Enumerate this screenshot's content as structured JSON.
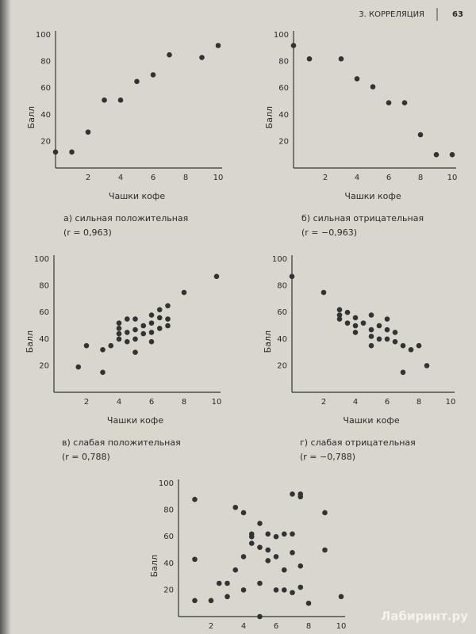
{
  "header": {
    "section": "3. КОРРЕЛЯЦИЯ",
    "page": "63"
  },
  "watermark": "Лабиринт.ру",
  "chart_data": [
    {
      "type": "scatter",
      "x_label": "Чашки кофе",
      "y_label": "Балл",
      "caption": "а) сильная положительная",
      "r_label": "(r = 0,963)",
      "color": "#333333",
      "xlim": [
        0,
        10
      ],
      "ylim": [
        0,
        100
      ],
      "xticks": [
        2,
        4,
        6,
        8,
        10
      ],
      "yticks": [
        20,
        40,
        60,
        80,
        100
      ],
      "x": [
        0,
        1,
        2,
        3,
        4,
        5,
        6,
        7,
        9,
        10
      ],
      "values": [
        12,
        12,
        27,
        51,
        51,
        65,
        70,
        85,
        83,
        92
      ]
    },
    {
      "type": "scatter",
      "x_label": "Чашки кофе",
      "y_label": "Балл",
      "caption": "б) сильная отрицательная",
      "r_label": "(r = −0,963)",
      "color": "#333333",
      "xlim": [
        0,
        10
      ],
      "ylim": [
        0,
        100
      ],
      "xticks": [
        2,
        4,
        6,
        8,
        10
      ],
      "yticks": [
        20,
        40,
        60,
        80,
        100
      ],
      "x": [
        0,
        1,
        3,
        4,
        5,
        6,
        7,
        8,
        9,
        10
      ],
      "values": [
        92,
        82,
        82,
        67,
        61,
        49,
        49,
        25,
        10,
        10
      ]
    },
    {
      "type": "scatter",
      "x_label": "Чашки кофе",
      "y_label": "Балл",
      "caption": "в) слабая положительная",
      "r_label": "(r = 0,788)",
      "color": "#333333",
      "xlim": [
        0,
        10
      ],
      "ylim": [
        0,
        100
      ],
      "xticks": [
        2,
        4,
        6,
        8,
        10
      ],
      "yticks": [
        20,
        40,
        60,
        80,
        100
      ],
      "x": [
        1.5,
        2,
        3,
        3,
        3.5,
        4,
        4,
        4,
        4,
        4.5,
        4.5,
        4.5,
        5,
        5,
        5,
        5,
        5.5,
        5.5,
        6,
        6,
        6,
        6,
        6.5,
        6.5,
        6.5,
        7,
        7,
        7,
        8,
        10
      ],
      "values": [
        19,
        35,
        32,
        15,
        35,
        40,
        44,
        48,
        52,
        38,
        45,
        55,
        30,
        40,
        47,
        55,
        50,
        44,
        38,
        45,
        52,
        58,
        48,
        56,
        62,
        50,
        55,
        65,
        75,
        87
      ]
    },
    {
      "type": "scatter",
      "x_label": "Чашки кофе",
      "y_label": "Балл",
      "caption": "г) слабая отрицательная",
      "r_label": "(r = −0,788)",
      "color": "#333333",
      "xlim": [
        0,
        10
      ],
      "ylim": [
        0,
        100
      ],
      "xticks": [
        2,
        4,
        6,
        8,
        10
      ],
      "yticks": [
        20,
        40,
        60,
        80,
        100
      ],
      "x": [
        0,
        2,
        3,
        3,
        3,
        3.5,
        3.5,
        4,
        4,
        4,
        4.5,
        5,
        5,
        5,
        5,
        5.5,
        5.5,
        6,
        6,
        6,
        6.5,
        6.5,
        7,
        7,
        7.5,
        8,
        8.5
      ],
      "values": [
        87,
        75,
        62,
        58,
        55,
        52,
        60,
        50,
        45,
        56,
        52,
        58,
        47,
        35,
        42,
        50,
        40,
        55,
        47,
        40,
        45,
        38,
        35,
        15,
        32,
        35,
        20
      ]
    },
    {
      "type": "scatter",
      "y_label": "Балл",
      "color": "#333333",
      "xlim": [
        0,
        10
      ],
      "ylim": [
        0,
        100
      ],
      "xticks": [
        2,
        4,
        6,
        8,
        10
      ],
      "yticks": [
        20,
        40,
        60,
        80,
        100
      ],
      "x": [
        1,
        1,
        1,
        2,
        2.5,
        3,
        3,
        3.5,
        3.5,
        4,
        4,
        4,
        4.5,
        4.5,
        4.5,
        5,
        5,
        5,
        5,
        5.5,
        5.5,
        5.5,
        6,
        6,
        6,
        6.5,
        6.5,
        6.5,
        7,
        7,
        7,
        7,
        7.5,
        7.5,
        7.5,
        7.5,
        8,
        9,
        9,
        10
      ],
      "values": [
        88,
        43,
        12,
        12,
        25,
        15,
        25,
        35,
        82,
        20,
        45,
        78,
        55,
        62,
        60,
        70,
        52,
        25,
        0,
        50,
        62,
        42,
        60,
        45,
        20,
        62,
        35,
        20,
        92,
        62,
        48,
        18,
        90,
        92,
        38,
        22,
        10,
        50,
        78,
        15
      ]
    }
  ]
}
